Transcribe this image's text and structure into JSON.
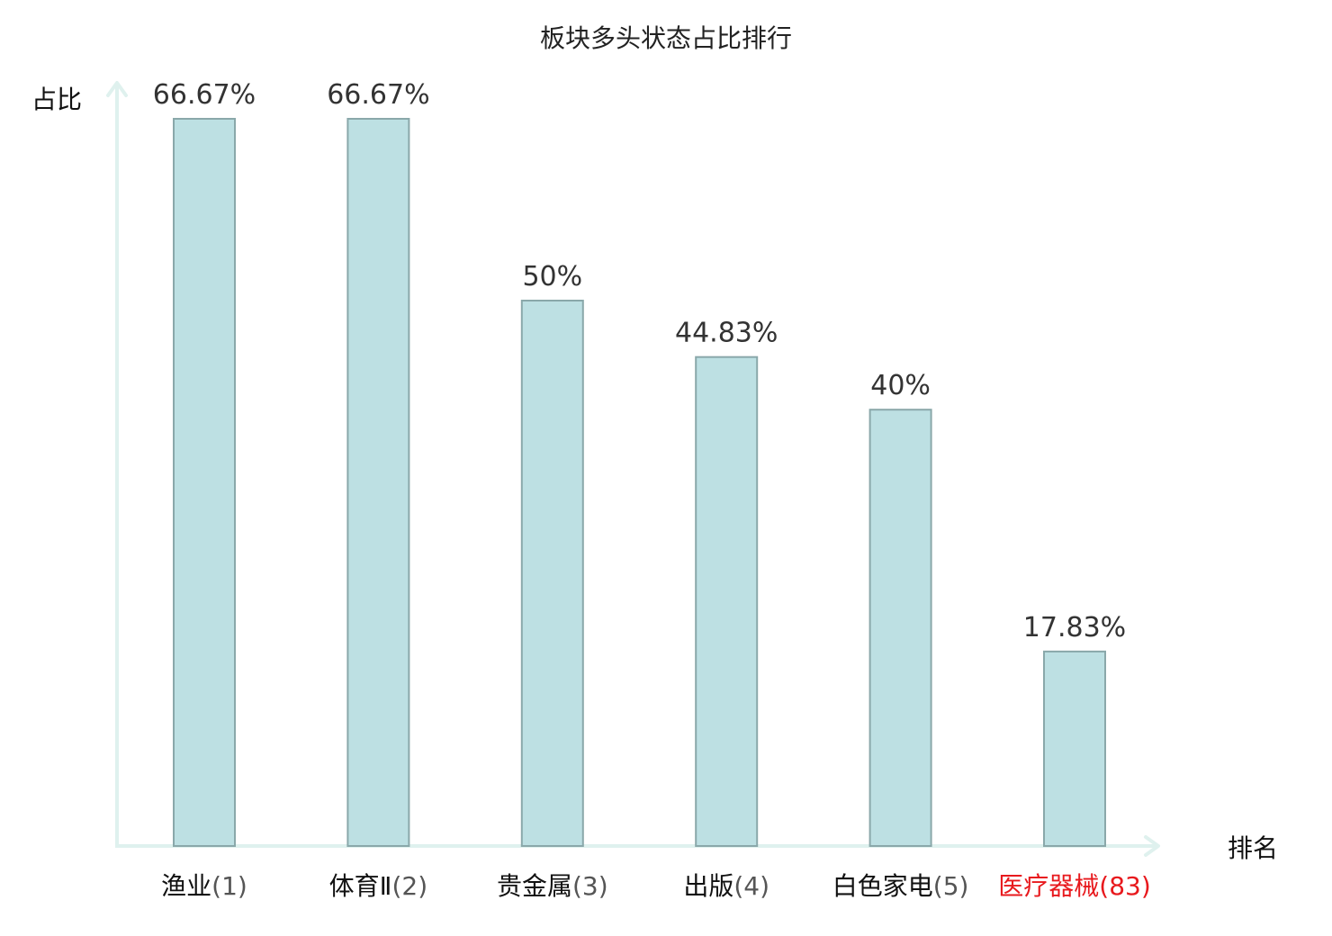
{
  "chart_data": {
    "type": "bar",
    "title": "板块多头状态占比排行",
    "ylabel": "占比",
    "xlabel": "排名",
    "categories": [
      {
        "name": "渔业",
        "rank": "(1)",
        "highlight": false
      },
      {
        "name": "体育Ⅱ",
        "rank": "(2)",
        "highlight": false
      },
      {
        "name": "贵金属",
        "rank": "(3)",
        "highlight": false
      },
      {
        "name": "出版",
        "rank": "(4)",
        "highlight": false
      },
      {
        "name": "白色家电",
        "rank": "(5)",
        "highlight": false
      },
      {
        "name": "医疗器械",
        "rank": "(83)",
        "highlight": true
      }
    ],
    "values": [
      66.67,
      66.67,
      50,
      44.83,
      40,
      17.83
    ],
    "value_labels": [
      "66.67%",
      "66.67%",
      "50%",
      "44.83%",
      "40%",
      "17.83%"
    ],
    "ylim": [
      0,
      70
    ],
    "grid": false,
    "colors": {
      "bar_fill": "#bde0e3",
      "bar_stroke": "#8aa8aa",
      "axis": "#dff1ee",
      "highlight": "#e8191d",
      "rank_text": "#555555"
    }
  }
}
